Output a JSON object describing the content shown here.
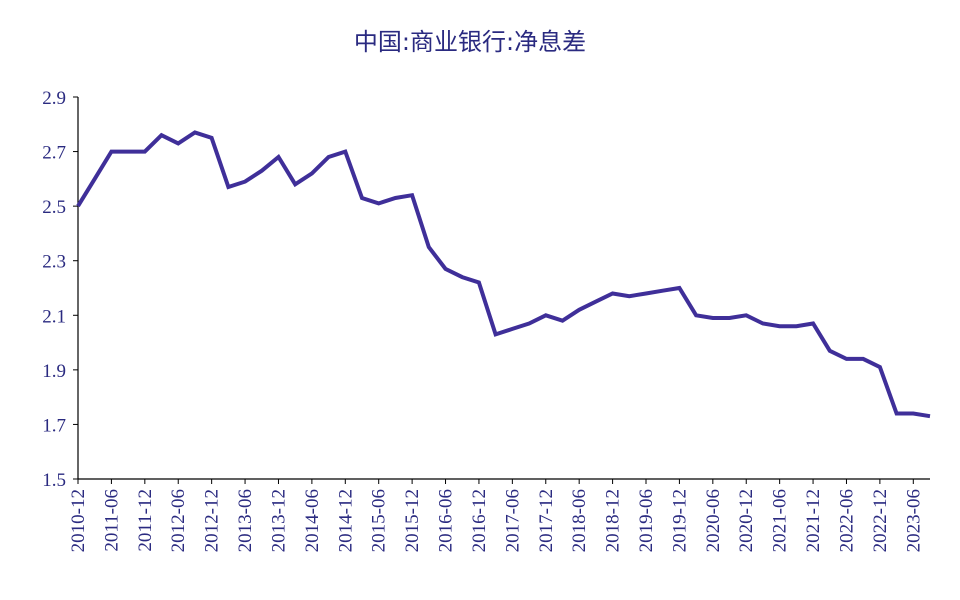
{
  "chart_data": {
    "type": "line",
    "title": "中国:商业银行:净息差",
    "xlabel": "",
    "ylabel": "",
    "ylim": [
      1.5,
      2.9
    ],
    "yticks": [
      "2.9",
      "2.7",
      "2.5",
      "2.3",
      "2.1",
      "1.9",
      "1.7",
      "1.5"
    ],
    "xticks": [
      "2010-12",
      "2011-06",
      "2011-12",
      "2012-06",
      "2012-12",
      "2013-06",
      "2013-12",
      "2014-06",
      "2014-12",
      "2015-06",
      "2015-12",
      "2016-06",
      "2016-12",
      "2017-06",
      "2017-12",
      "2018-06",
      "2018-12",
      "2019-06",
      "2019-12",
      "2020-06",
      "2020-12",
      "2021-06",
      "2021-12",
      "2022-06",
      "2022-12",
      "2023-06"
    ],
    "grid": false,
    "legend": "none",
    "colors": {
      "line": "#3f2f99",
      "text": "#2a2a80",
      "axis": "#000000"
    },
    "series": [
      {
        "x": [
          "2010-12",
          "2011-03",
          "2011-06",
          "2011-09",
          "2011-12",
          "2012-03",
          "2012-06",
          "2012-09",
          "2012-12",
          "2013-03",
          "2013-06",
          "2013-09",
          "2013-12",
          "2014-03",
          "2014-06",
          "2014-09",
          "2014-12",
          "2015-03",
          "2015-06",
          "2015-09",
          "2015-12",
          "2016-03",
          "2016-06",
          "2016-09",
          "2016-12",
          "2017-03",
          "2017-06",
          "2017-09",
          "2017-12",
          "2018-03",
          "2018-06",
          "2018-09",
          "2018-12",
          "2019-03",
          "2019-06",
          "2019-09",
          "2019-12",
          "2020-03",
          "2020-06",
          "2020-09",
          "2020-12",
          "2021-03",
          "2021-06",
          "2021-09",
          "2021-12",
          "2022-03",
          "2022-06",
          "2022-09",
          "2022-12",
          "2023-03",
          "2023-06",
          "2023-09"
        ],
        "values": [
          2.5,
          2.6,
          2.7,
          2.7,
          2.7,
          2.76,
          2.73,
          2.77,
          2.75,
          2.57,
          2.59,
          2.63,
          2.68,
          2.58,
          2.62,
          2.68,
          2.7,
          2.53,
          2.51,
          2.53,
          2.54,
          2.35,
          2.27,
          2.24,
          2.22,
          2.03,
          2.05,
          2.07,
          2.1,
          2.08,
          2.12,
          2.15,
          2.18,
          2.17,
          2.18,
          2.19,
          2.2,
          2.1,
          2.09,
          2.09,
          2.1,
          2.07,
          2.06,
          2.06,
          2.07,
          1.97,
          1.94,
          1.94,
          1.91,
          1.74,
          1.74,
          1.73
        ]
      }
    ]
  }
}
